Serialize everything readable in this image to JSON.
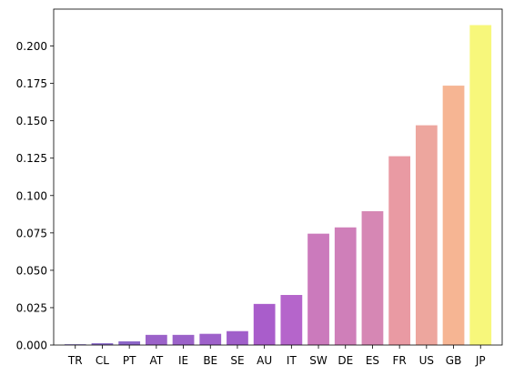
{
  "chart_data": {
    "type": "bar",
    "title": "",
    "xlabel": "",
    "ylabel": "",
    "categories": [
      "TR",
      "CL",
      "PT",
      "AT",
      "IE",
      "BE",
      "SE",
      "AU",
      "IT",
      "SW",
      "DE",
      "ES",
      "FR",
      "US",
      "GB",
      "JP"
    ],
    "values": [
      0.0005,
      0.0012,
      0.0025,
      0.0068,
      0.0068,
      0.0075,
      0.0093,
      0.0275,
      0.0335,
      0.0745,
      0.0787,
      0.0895,
      0.1263,
      0.147,
      0.1735,
      0.214
    ],
    "colors": [
      "#7e6bc4",
      "#8a6bc8",
      "#8c66c8",
      "#9b62c9",
      "#9b62c9",
      "#9e61ca",
      "#a05fca",
      "#a95dcb",
      "#b565cb",
      "#cb7abc",
      "#cf7fb9",
      "#d687b4",
      "#e99aa3",
      "#eda69e",
      "#f6b593",
      "#f7f77b"
    ],
    "yticks": [
      "0.000",
      "0.025",
      "0.050",
      "0.075",
      "0.100",
      "0.125",
      "0.150",
      "0.175",
      "0.200"
    ],
    "ylim": [
      0,
      0.2247
    ],
    "grid": false,
    "legend": "none"
  }
}
